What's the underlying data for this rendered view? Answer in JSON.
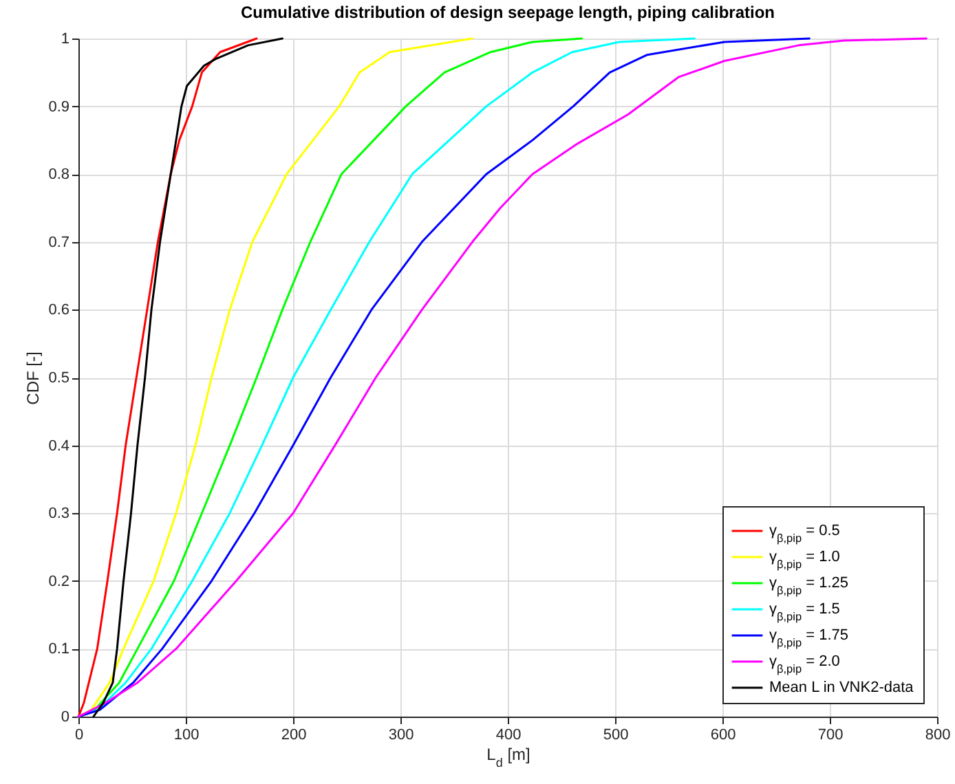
{
  "chart_data": {
    "type": "line",
    "title": "Cumulative distribution of design seepage length, piping calibration",
    "xlabel": "L$_{d}$ [m]",
    "ylabel": "CDF [-]",
    "xlim": [
      0,
      800
    ],
    "ylim": [
      0,
      1
    ],
    "xticks": [
      0,
      100,
      200,
      300,
      400,
      500,
      600,
      700,
      800
    ],
    "yticks": [
      0,
      0.1,
      0.2,
      0.3,
      0.4,
      0.5,
      0.6,
      0.7,
      0.8,
      0.9,
      1
    ],
    "grid": true,
    "legend": "bottom right",
    "marker": "none",
    "line_style": "solid",
    "series": [
      {
        "name": "γ$_{β,pip}$ = 0.5",
        "color": "#ff0000",
        "x": [
          0,
          5,
          17.5,
          27,
          36,
          44,
          54,
          64,
          74,
          86,
          94,
          106,
          115,
          132,
          166
        ],
        "values": [
          0,
          0.02,
          0.1,
          0.2,
          0.3,
          0.4,
          0.5,
          0.6,
          0.7,
          0.8,
          0.85,
          0.9,
          0.95,
          0.98,
          1
        ]
      },
      {
        "name": "γ$_{β,pip}$ = 1.0",
        "color": "#ffff00",
        "x": [
          0,
          12,
          29,
          42,
          70,
          91,
          109,
          124,
          141,
          162,
          194,
          243,
          262,
          290,
          367
        ],
        "values": [
          0,
          0.01,
          0.05,
          0.1,
          0.2,
          0.3,
          0.4,
          0.5,
          0.6,
          0.7,
          0.8,
          0.9,
          0.95,
          0.98,
          1
        ]
      },
      {
        "name": "γ$_{β,pip}$ = 1.25",
        "color": "#00ff00",
        "x": [
          0,
          15,
          38,
          55,
          89,
          115,
          141,
          166,
          190,
          216,
          245,
          305,
          341,
          384,
          423,
          469
        ],
        "values": [
          0,
          0.01,
          0.05,
          0.1,
          0.2,
          0.3,
          0.4,
          0.5,
          0.6,
          0.7,
          0.8,
          0.9,
          0.95,
          0.98,
          0.995,
          1
        ]
      },
      {
        "name": "γ$_{β,pip}$ = 1.5",
        "color": "#00ffff",
        "x": [
          0,
          18,
          44,
          68,
          106,
          141,
          171,
          200,
          235,
          271,
          311,
          380,
          423,
          460,
          504,
          574
        ],
        "values": [
          0,
          0.01,
          0.05,
          0.1,
          0.2,
          0.3,
          0.4,
          0.5,
          0.6,
          0.7,
          0.8,
          0.9,
          0.95,
          0.98,
          0.995,
          1
        ]
      },
      {
        "name": "γ$_{β,pip}$ = 1.75",
        "color": "#0000ff",
        "x": [
          0,
          20,
          51,
          78,
          124,
          164,
          200,
          235,
          273,
          320,
          380,
          423,
          461,
          495,
          530,
          602,
          681
        ],
        "values": [
          0,
          0.01,
          0.05,
          0.1,
          0.2,
          0.3,
          0.4,
          0.5,
          0.6,
          0.7,
          0.8,
          0.85,
          0.9,
          0.95,
          0.976,
          0.995,
          1
        ]
      },
      {
        "name": "γ$_{β,pip}$ = 2.0",
        "color": "#ff00ff",
        "x": [
          0,
          25,
          55,
          91,
          147,
          200,
          239,
          277,
          320,
          367,
          393,
          423,
          465,
          512,
          559,
          602,
          671,
          713,
          790
        ],
        "values": [
          0,
          0.02,
          0.05,
          0.1,
          0.2,
          0.3,
          0.4,
          0.5,
          0.6,
          0.7,
          0.75,
          0.8,
          0.845,
          0.888,
          0.943,
          0.967,
          0.99,
          0.997,
          1
        ]
      },
      {
        "name": "Mean L in VNK2-data",
        "color": "#000000",
        "x": [
          14,
          23,
          32,
          36,
          42,
          49,
          55,
          62,
          68,
          76,
          86,
          96,
          101,
          117,
          128,
          158,
          190
        ],
        "values": [
          0,
          0.02,
          0.05,
          0.1,
          0.2,
          0.3,
          0.4,
          0.5,
          0.6,
          0.7,
          0.8,
          0.9,
          0.93,
          0.96,
          0.97,
          0.99,
          1
        ]
      }
    ]
  }
}
